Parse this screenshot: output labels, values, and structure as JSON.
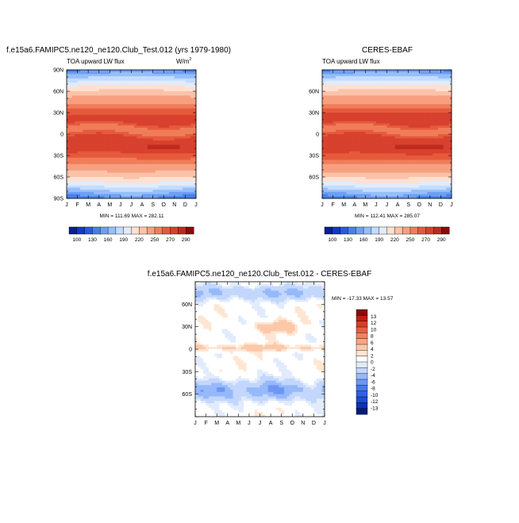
{
  "panels": {
    "model": {
      "title": "f.e15a6.FAMIPC5.ne120_ne120.Club_Test.012 (yrs 1979-1980)",
      "variable": "TOA upward LW flux",
      "units": "W/m",
      "units_sup": "2",
      "minmax": "MIN = 111.69 MAX = 282.11"
    },
    "obs": {
      "title": "CERES-EBAF",
      "variable": "TOA upward LW flux",
      "minmax": "MIN = 112.41 MAX = 285.07"
    },
    "diff": {
      "title": "f.e15a6.FAMIPC5.ne120_ne120.Club_Test.012 - CERES-EBAF",
      "minmax": "MIN = -17.33 MAX =  13.57"
    }
  },
  "colors": {
    "abs_levels": [
      "#0a1e96",
      "#1437c8",
      "#285ae1",
      "#4680eb",
      "#6ea0f0",
      "#96befa",
      "#c3dcff",
      "#e1ecfa",
      "#ffe1d2",
      "#fac3aa",
      "#f7a080",
      "#f07d5a",
      "#e65a3c",
      "#d7412d",
      "#bf2a1e",
      "#8c0a0a"
    ],
    "diff_levels": [
      "#061a80",
      "#0c32b4",
      "#1e4bd2",
      "#325fe6",
      "#4678f0",
      "#6e96f5",
      "#96b9fa",
      "#c3d7fc",
      "#e1ebfc",
      "#ffffff",
      "#ffe6d2",
      "#fcc8aa",
      "#f7a582",
      "#f08264",
      "#e65f46",
      "#dc3c28",
      "#c01e14",
      "#8c0a0a"
    ]
  },
  "chart_data": [
    {
      "type": "heatmap",
      "name": "model",
      "title": "f.e15a6.FAMIPC5.ne120_ne120.Club_Test.012 (yrs 1979-1980)",
      "subtitle": "TOA upward LW flux",
      "units": "W/m2",
      "x_ticks": [
        "J",
        "F",
        "M",
        "A",
        "M",
        "J",
        "J",
        "A",
        "S",
        "O",
        "N",
        "D",
        "J"
      ],
      "y_ticks": [
        "90N",
        "60N",
        "30N",
        "0",
        "30S",
        "60S",
        "90S"
      ],
      "ylim": [
        -90,
        90
      ],
      "colorbar_labels": [
        "100",
        "130",
        "160",
        "190",
        "220",
        "250",
        "270",
        "290"
      ],
      "min": 111.69,
      "max": 282.11
    },
    {
      "type": "heatmap",
      "name": "obs",
      "title": "CERES-EBAF",
      "subtitle": "TOA upward LW flux",
      "x_ticks": [
        "J",
        "F",
        "M",
        "A",
        "M",
        "J",
        "J",
        "A",
        "S",
        "O",
        "N",
        "D",
        "J"
      ],
      "y_ticks": [
        "60N",
        "30N",
        "0",
        "30S",
        "60S"
      ],
      "ylim": [
        -90,
        90
      ],
      "colorbar_labels": [
        "100",
        "130",
        "160",
        "190",
        "220",
        "250",
        "270",
        "290"
      ],
      "min": 112.41,
      "max": 285.07
    },
    {
      "type": "heatmap",
      "name": "difference",
      "title": "f.e15a6.FAMIPC5.ne120_ne120.Club_Test.012 - CERES-EBAF",
      "x_ticks": [
        "J",
        "F",
        "M",
        "A",
        "M",
        "J",
        "J",
        "A",
        "S",
        "O",
        "N",
        "D",
        "J"
      ],
      "y_ticks": [
        "60N",
        "30N",
        "0",
        "30S",
        "60S"
      ],
      "ylim": [
        -90,
        90
      ],
      "colorbar_labels": [
        "13",
        "12",
        "10",
        "8",
        "6",
        "4",
        "2",
        "0",
        "-2",
        "-4",
        "-6",
        "-8",
        "-10",
        "-12",
        "-13"
      ],
      "min": -17.33,
      "max": 13.57
    }
  ]
}
